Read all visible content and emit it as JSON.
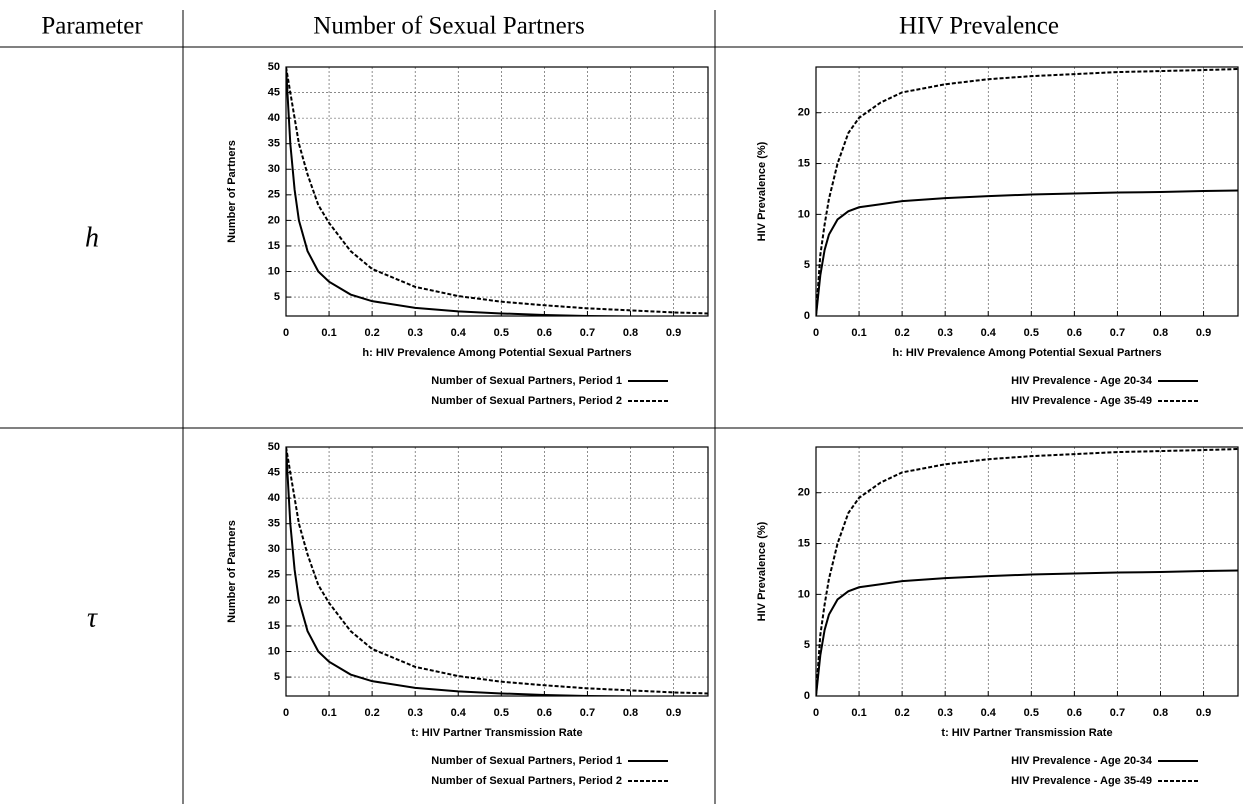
{
  "table": {
    "headers": [
      "Parameter",
      "Number of Sexual Partners",
      "HIV Prevalence"
    ],
    "row_labels": [
      "h",
      "τ"
    ]
  },
  "chart_data": [
    {
      "type": "line",
      "ylabel": "Number of Partners",
      "xlabel": "h:  HIV Prevalence Among Potential Sexual Partners",
      "x": [
        0,
        0.01,
        0.02,
        0.03,
        0.05,
        0.075,
        0.1,
        0.15,
        0.2,
        0.3,
        0.4,
        0.5,
        0.6,
        0.7,
        0.8,
        0.9,
        0.98
      ],
      "series": [
        {
          "name": "Number of Sexual Partners, Period 1",
          "color": "#000000",
          "style": "solid",
          "values": [
            50,
            35,
            26,
            20,
            14,
            10,
            8,
            5.5,
            4.2,
            2.9,
            2.2,
            1.8,
            1.5,
            1.3,
            1.2,
            1.1,
            1.0
          ]
        },
        {
          "name": "Number of Sexual Partners, Period 2",
          "color": "#000000",
          "style": "dashed",
          "values": [
            50,
            45,
            40,
            35,
            29,
            23,
            19.5,
            14,
            10.5,
            7,
            5.2,
            4.1,
            3.4,
            2.8,
            2.4,
            2.0,
            1.8
          ]
        }
      ],
      "xlim": [
        0,
        0.98
      ],
      "ylim": [
        1.3,
        50
      ],
      "xticks": [
        0,
        0.1,
        0.2,
        0.3,
        0.4,
        0.5,
        0.6,
        0.7,
        0.8,
        0.9
      ],
      "yticks": [
        5,
        10,
        15,
        20,
        25,
        30,
        35,
        40,
        45,
        50
      ],
      "grid": true
    },
    {
      "type": "line",
      "ylabel": "HIV Prevalence (%)",
      "xlabel": "h:  HIV Prevalence Among Potential Sexual Partners",
      "x": [
        0,
        0.01,
        0.02,
        0.03,
        0.05,
        0.075,
        0.1,
        0.15,
        0.2,
        0.3,
        0.4,
        0.5,
        0.6,
        0.7,
        0.8,
        0.9,
        0.98
      ],
      "series": [
        {
          "name": "HIV Prevalence - Age 20-34",
          "color": "#000000",
          "style": "solid",
          "values": [
            0,
            4,
            6.5,
            8,
            9.5,
            10.3,
            10.7,
            11,
            11.3,
            11.6,
            11.8,
            11.95,
            12.05,
            12.15,
            12.2,
            12.3,
            12.35
          ]
        },
        {
          "name": "HIV Prevalence - Age 35-49",
          "color": "#000000",
          "style": "dashed",
          "values": [
            0,
            6,
            9,
            11.5,
            15,
            18,
            19.5,
            21,
            22,
            22.8,
            23.3,
            23.6,
            23.8,
            24,
            24.1,
            24.2,
            24.3
          ]
        }
      ],
      "xlim": [
        0,
        0.98
      ],
      "ylim": [
        0,
        24.5
      ],
      "xticks": [
        0,
        0.1,
        0.2,
        0.3,
        0.4,
        0.5,
        0.6,
        0.7,
        0.8,
        0.9
      ],
      "yticks": [
        0,
        5,
        10,
        15,
        20
      ],
      "grid": true
    },
    {
      "type": "line",
      "ylabel": "Number of Partners",
      "xlabel": "t: HIV Partner Transmission Rate",
      "x": [
        0,
        0.01,
        0.02,
        0.03,
        0.05,
        0.075,
        0.1,
        0.15,
        0.2,
        0.3,
        0.4,
        0.5,
        0.6,
        0.7,
        0.8,
        0.9,
        0.98
      ],
      "series": [
        {
          "name": "Number of Sexual Partners, Period 1",
          "color": "#000000",
          "style": "solid",
          "values": [
            50,
            35,
            26,
            20,
            14,
            10,
            8,
            5.5,
            4.2,
            2.9,
            2.2,
            1.8,
            1.5,
            1.3,
            1.2,
            1.1,
            1.0
          ]
        },
        {
          "name": "Number of Sexual Partners, Period 2",
          "color": "#000000",
          "style": "dashed",
          "values": [
            50,
            45,
            40,
            35,
            29,
            23,
            19.5,
            14,
            10.5,
            7,
            5.2,
            4.1,
            3.4,
            2.8,
            2.4,
            2.0,
            1.8
          ]
        }
      ],
      "xlim": [
        0,
        0.98
      ],
      "ylim": [
        1.3,
        50
      ],
      "xticks": [
        0,
        0.1,
        0.2,
        0.3,
        0.4,
        0.5,
        0.6,
        0.7,
        0.8,
        0.9
      ],
      "yticks": [
        5,
        10,
        15,
        20,
        25,
        30,
        35,
        40,
        45,
        50
      ],
      "grid": true
    },
    {
      "type": "line",
      "ylabel": "HIV Prevalence (%)",
      "xlabel": "t: HIV Partner Transmission Rate",
      "x": [
        0,
        0.01,
        0.02,
        0.03,
        0.05,
        0.075,
        0.1,
        0.15,
        0.2,
        0.3,
        0.4,
        0.5,
        0.6,
        0.7,
        0.8,
        0.9,
        0.98
      ],
      "series": [
        {
          "name": "HIV Prevalence - Age 20-34",
          "color": "#000000",
          "style": "solid",
          "values": [
            0,
            4,
            6.5,
            8,
            9.5,
            10.3,
            10.7,
            11,
            11.3,
            11.6,
            11.8,
            11.95,
            12.05,
            12.15,
            12.2,
            12.3,
            12.35
          ]
        },
        {
          "name": "HIV Prevalence - Age 35-49",
          "color": "#000000",
          "style": "dashed",
          "values": [
            0,
            6,
            9,
            11.5,
            15,
            18,
            19.5,
            21,
            22,
            22.8,
            23.3,
            23.6,
            23.8,
            24,
            24.1,
            24.2,
            24.3
          ]
        }
      ],
      "xlim": [
        0,
        0.98
      ],
      "ylim": [
        0,
        24.5
      ],
      "xticks": [
        0,
        0.1,
        0.2,
        0.3,
        0.4,
        0.5,
        0.6,
        0.7,
        0.8,
        0.9
      ],
      "yticks": [
        0,
        5,
        10,
        15,
        20
      ],
      "grid": true
    }
  ]
}
